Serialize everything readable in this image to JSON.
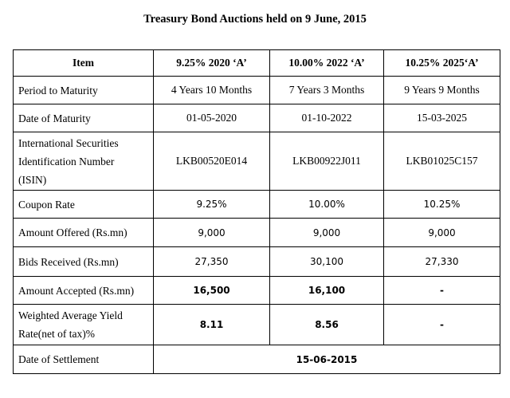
{
  "title": "Treasury Bond Auctions held on 9 June, 2015",
  "headers": {
    "item": "Item",
    "bond1": "9.25% 2020 ‘A’",
    "bond2": "10.00% 2022 ‘A’",
    "bond3": "10.25% 2025‘A’"
  },
  "rows": {
    "period": {
      "label": "Period to Maturity",
      "b1": "4 Years 10 Months",
      "b2": "7 Years 3 Months",
      "b3": "9 Years 9 Months"
    },
    "date": {
      "label": "Date of Maturity",
      "b1": "01-05-2020",
      "b2": "01-10-2022",
      "b3": "15-03-2025"
    },
    "isin": {
      "label_line1": "International Securities",
      "label_line2": "Identification Number",
      "label_line3": "(ISIN)",
      "b1": "LKB00520E014",
      "b2": "LKB00922J011",
      "b3": "LKB01025C157"
    },
    "coupon": {
      "label": "Coupon Rate",
      "b1": "9.25%",
      "b2": "10.00%",
      "b3": "10.25%"
    },
    "offered": {
      "label": "Amount Offered (Rs.mn)",
      "b1": "9,000",
      "b2": "9,000",
      "b3": "9,000"
    },
    "bids": {
      "label": "Bids Received (Rs.mn)",
      "b1": "27,350",
      "b2": "30,100",
      "b3": "27,330"
    },
    "accepted": {
      "label": "Amount Accepted (Rs.mn)",
      "b1": "16,500",
      "b2": "16,100",
      "b3": "-"
    },
    "yield": {
      "label_line1": "Weighted Average Yield",
      "label_line2": "Rate(net of tax)%",
      "b1": "8.11",
      "b2": "8.56",
      "b3": "-"
    },
    "settlement": {
      "label": "Date of Settlement",
      "value": "15-06-2015"
    }
  }
}
